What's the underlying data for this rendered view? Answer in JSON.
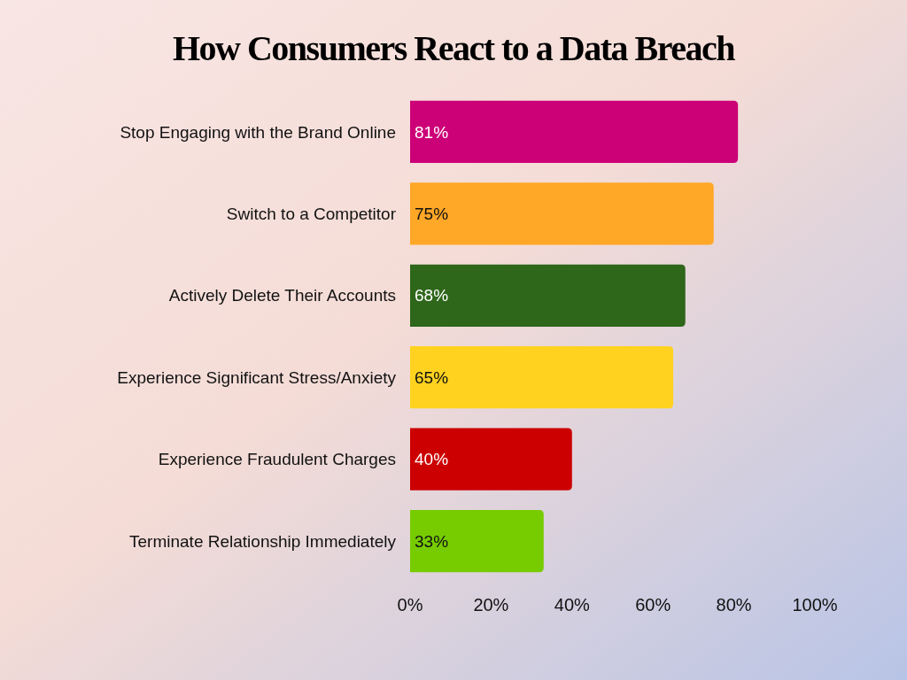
{
  "chart_data": {
    "type": "bar",
    "orientation": "horizontal",
    "title": "How Consumers React to a Data Breach",
    "categories": [
      "Stop Engaging with the Brand Online",
      "Switch to a Competitor",
      "Actively Delete Their Accounts",
      "Experience Significant Stress/Anxiety",
      "Experience Fraudulent Charges",
      "Terminate Relationship Immediately"
    ],
    "values": [
      81,
      75,
      68,
      65,
      40,
      33
    ],
    "colors": [
      "#cc0077",
      "#ffa726",
      "#2e661a",
      "#ffd21f",
      "#cc0000",
      "#77cc00"
    ],
    "value_labels": [
      "81%",
      "75%",
      "68%",
      "65%",
      "40%",
      "33%"
    ],
    "xlim": [
      0,
      100
    ],
    "xticks": [
      {
        "value": 0,
        "label": "0%"
      },
      {
        "value": 20,
        "label": "20%"
      },
      {
        "value": 40,
        "label": "40%"
      },
      {
        "value": 60,
        "label": "60%"
      },
      {
        "value": 80,
        "label": "80%"
      },
      {
        "value": 100,
        "label": "100%"
      }
    ],
    "grid": false
  }
}
